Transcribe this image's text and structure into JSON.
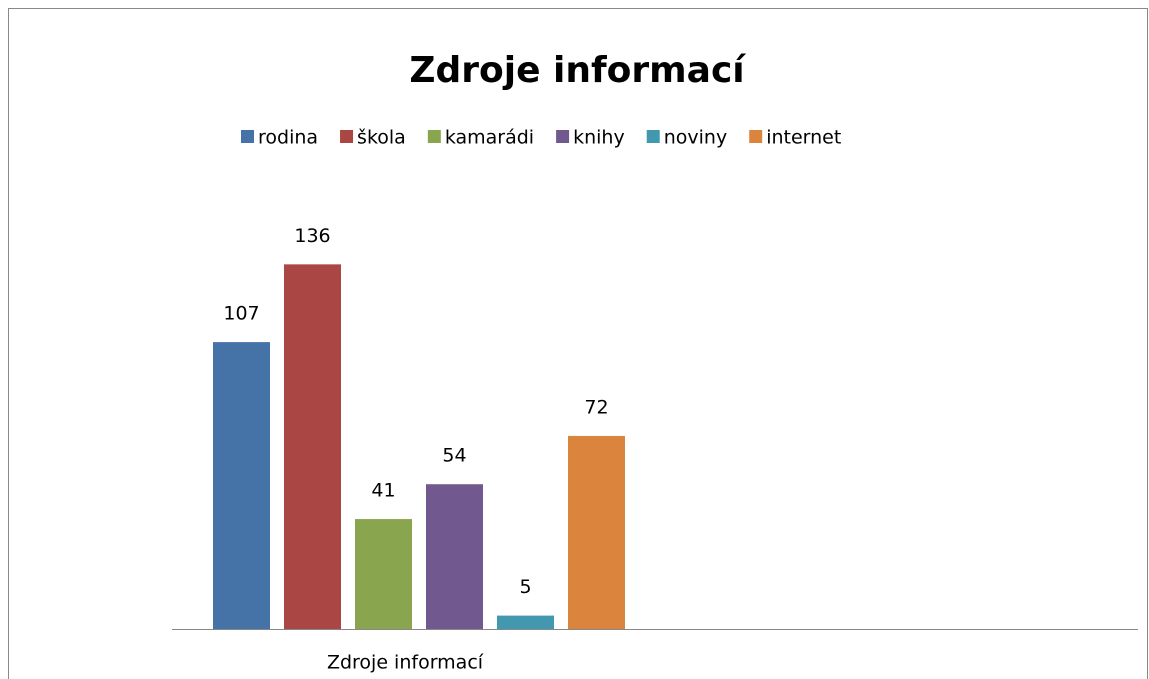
{
  "chart_data": {
    "type": "bar",
    "title": "Zdroje informací",
    "categories": [
      "Zdroje informací"
    ],
    "series": [
      {
        "name": "rodina",
        "color": "#4572a7",
        "values": [
          107
        ]
      },
      {
        "name": "škola",
        "color": "#aa4643",
        "values": [
          136
        ]
      },
      {
        "name": "kamarádi",
        "color": "#89a54e",
        "values": [
          41
        ]
      },
      {
        "name": "knihy",
        "color": "#71588f",
        "values": [
          54
        ]
      },
      {
        "name": "noviny",
        "color": "#4198af",
        "values": [
          5
        ]
      },
      {
        "name": "internet",
        "color": "#db843d",
        "values": [
          72
        ]
      }
    ],
    "ylim": [
      0,
      160
    ],
    "legend": "top"
  }
}
